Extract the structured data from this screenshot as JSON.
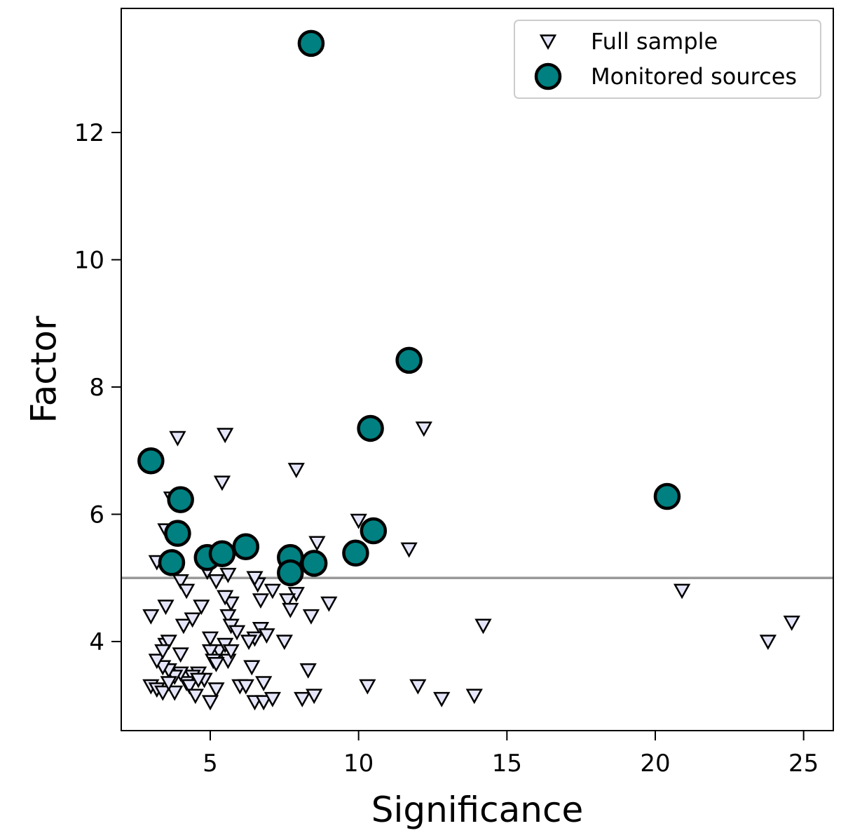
{
  "chart_data": {
    "type": "scatter",
    "title": "",
    "xlabel": "Significance",
    "ylabel": "Factor",
    "xlim": [
      2,
      26
    ],
    "ylim": [
      2.6,
      13.95
    ],
    "xticks": [
      5,
      10,
      15,
      20,
      25
    ],
    "yticks": [
      4,
      6,
      8,
      10,
      12
    ],
    "hline": {
      "y": 5,
      "color": "#999999"
    },
    "legend_position": "top-right",
    "series": [
      {
        "name": "Full sample",
        "marker": "triangle-down",
        "color": "#e6e6fa",
        "edge_color": "#000000",
        "points": [
          [
            3.2,
            5.25
          ],
          [
            3.0,
            4.4
          ],
          [
            3.5,
            4.55
          ],
          [
            4.0,
            4.95
          ],
          [
            4.2,
            4.8
          ],
          [
            4.9,
            5.1
          ],
          [
            5.2,
            4.95
          ],
          [
            5.6,
            5.05
          ],
          [
            4.1,
            4.25
          ],
          [
            4.4,
            4.35
          ],
          [
            4.7,
            4.55
          ],
          [
            3.9,
            7.2
          ],
          [
            5.5,
            7.25
          ],
          [
            5.4,
            6.5
          ],
          [
            7.9,
            6.7
          ],
          [
            12.2,
            7.35
          ],
          [
            3.5,
            5.75
          ],
          [
            3.7,
            6.25
          ],
          [
            10.0,
            5.9
          ],
          [
            8.6,
            5.55
          ],
          [
            11.7,
            5.45
          ],
          [
            20.9,
            4.8
          ],
          [
            24.6,
            4.3
          ],
          [
            23.8,
            4.0
          ],
          [
            14.2,
            4.25
          ],
          [
            9.0,
            4.6
          ],
          [
            8.4,
            4.4
          ],
          [
            7.9,
            4.75
          ],
          [
            7.6,
            4.65
          ],
          [
            7.7,
            4.5
          ],
          [
            7.1,
            4.8
          ],
          [
            6.6,
            4.9
          ],
          [
            6.5,
            5.0
          ],
          [
            6.7,
            4.65
          ],
          [
            6.7,
            4.2
          ],
          [
            6.5,
            4.05
          ],
          [
            6.3,
            4.0
          ],
          [
            6.9,
            4.1
          ],
          [
            7.5,
            4.0
          ],
          [
            5.7,
            4.6
          ],
          [
            5.6,
            4.4
          ],
          [
            5.7,
            4.25
          ],
          [
            5.9,
            4.15
          ],
          [
            5.3,
            3.85
          ],
          [
            5.5,
            3.95
          ],
          [
            5.6,
            3.7
          ],
          [
            5.0,
            3.85
          ],
          [
            5.1,
            3.7
          ],
          [
            5.0,
            4.05
          ],
          [
            5.7,
            3.85
          ],
          [
            4.6,
            3.5
          ],
          [
            4.4,
            3.45
          ],
          [
            4.2,
            3.35
          ],
          [
            4.0,
            3.5
          ],
          [
            3.8,
            3.45
          ],
          [
            3.6,
            3.55
          ],
          [
            3.4,
            3.6
          ],
          [
            3.2,
            3.7
          ],
          [
            3.5,
            3.95
          ],
          [
            3.6,
            4.0
          ],
          [
            3.4,
            3.85
          ],
          [
            4.0,
            3.8
          ],
          [
            3.0,
            3.3
          ],
          [
            3.2,
            3.25
          ],
          [
            3.4,
            3.2
          ],
          [
            3.8,
            3.2
          ],
          [
            4.3,
            3.3
          ],
          [
            4.5,
            3.15
          ],
          [
            5.0,
            3.05
          ],
          [
            5.2,
            3.25
          ],
          [
            6.0,
            3.3
          ],
          [
            6.2,
            3.3
          ],
          [
            6.5,
            3.05
          ],
          [
            6.8,
            3.05
          ],
          [
            7.1,
            3.1
          ],
          [
            6.8,
            3.35
          ],
          [
            6.4,
            3.6
          ],
          [
            8.1,
            3.1
          ],
          [
            8.5,
            3.15
          ],
          [
            8.3,
            3.55
          ],
          [
            10.3,
            3.3
          ],
          [
            12.0,
            3.3
          ],
          [
            12.8,
            3.1
          ],
          [
            13.9,
            3.15
          ],
          [
            3.6,
            3.35
          ],
          [
            4.8,
            3.4
          ],
          [
            5.2,
            3.65
          ],
          [
            5.5,
            4.7
          ],
          [
            4.6,
            3.4
          ]
        ]
      },
      {
        "name": "Monitored sources",
        "marker": "circle",
        "color": "#008080",
        "edge_color": "#000000",
        "points": [
          [
            8.4,
            13.4
          ],
          [
            11.7,
            8.42
          ],
          [
            10.4,
            7.35
          ],
          [
            3.0,
            6.84
          ],
          [
            20.4,
            6.28
          ],
          [
            4.0,
            6.23
          ],
          [
            3.9,
            5.7
          ],
          [
            10.5,
            5.74
          ],
          [
            3.7,
            5.24
          ],
          [
            4.9,
            5.32
          ],
          [
            5.4,
            5.38
          ],
          [
            6.2,
            5.49
          ],
          [
            7.7,
            5.32
          ],
          [
            7.7,
            5.08
          ],
          [
            8.5,
            5.23
          ],
          [
            9.9,
            5.39
          ]
        ]
      }
    ]
  }
}
